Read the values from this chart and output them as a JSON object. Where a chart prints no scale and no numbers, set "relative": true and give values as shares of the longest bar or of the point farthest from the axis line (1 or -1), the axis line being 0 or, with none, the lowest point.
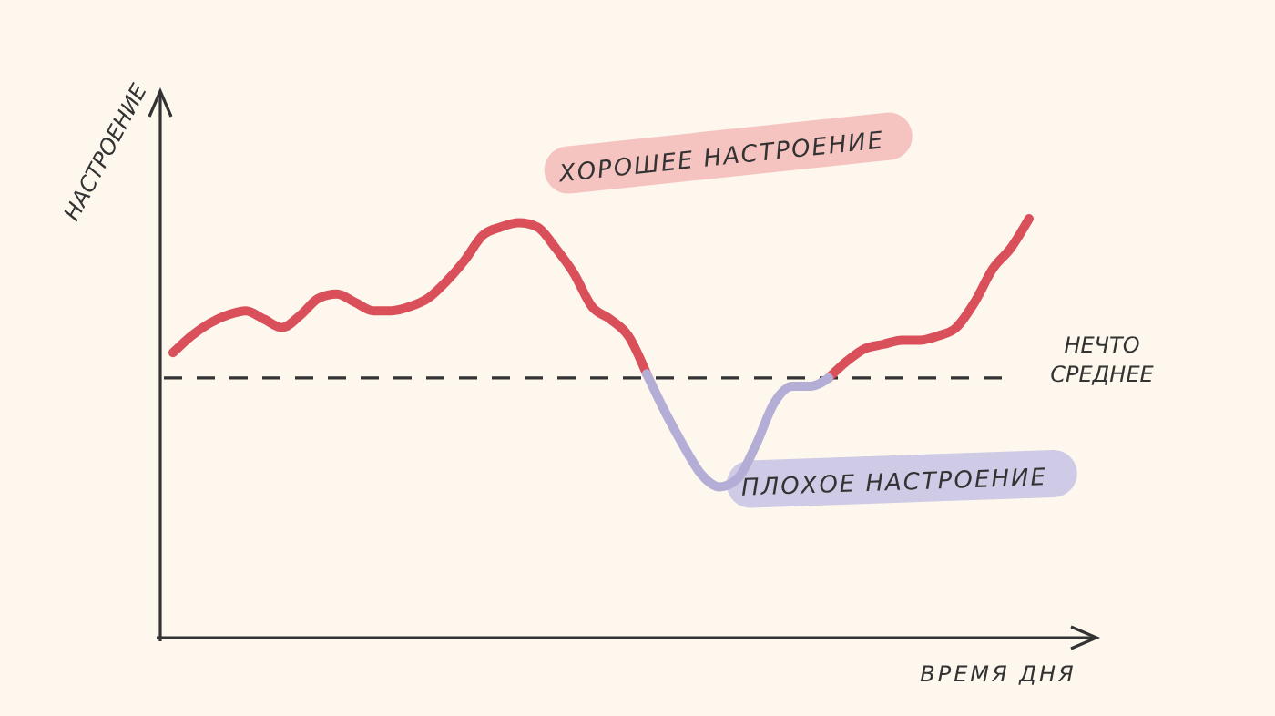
{
  "chart_data": {
    "type": "line",
    "relative": true,
    "xlabel": "ВРЕМЯ ДНЯ",
    "ylabel": "НАСТРОЕНИЕ",
    "categories": [
      null,
      null,
      null,
      null,
      null,
      null,
      null,
      null,
      null,
      null,
      null,
      null,
      null,
      null,
      null,
      null,
      null,
      null,
      null,
      null,
      null,
      null,
      null,
      null,
      null,
      null,
      null,
      null,
      null,
      null,
      null,
      null,
      null,
      null,
      null,
      null,
      null,
      null,
      null,
      null,
      null,
      null,
      null,
      null,
      null,
      null,
      null,
      null
    ],
    "series": [
      {
        "color": "#d9505a",
        "values": [
          0.68,
          0.72,
          0.75,
          0.77,
          0.78,
          0.76,
          0.74,
          0.77,
          0.81,
          0.82,
          0.8,
          0.78,
          0.78,
          0.79,
          0.81,
          0.85,
          0.9,
          0.96,
          0.98,
          0.99,
          0.98,
          0.93,
          0.87,
          0.79,
          0.76,
          0.72,
          0.63,
          null,
          null,
          null,
          null,
          null,
          null,
          null,
          null,
          null,
          0.62,
          0.66,
          0.69,
          0.7,
          0.71,
          0.71,
          0.72,
          0.74,
          0.8,
          0.88,
          0.93,
          1.0
        ]
      },
      {
        "color": "#b4aed6",
        "values": [
          null,
          null,
          null,
          null,
          null,
          null,
          null,
          null,
          null,
          null,
          null,
          null,
          null,
          null,
          null,
          null,
          null,
          null,
          null,
          null,
          null,
          null,
          null,
          null,
          null,
          null,
          0.63,
          0.54,
          0.46,
          0.39,
          0.36,
          0.38,
          0.46,
          0.56,
          0.6,
          0.6,
          0.62,
          null,
          null,
          null,
          null,
          null,
          null,
          null,
          null,
          null,
          null,
          null
        ]
      }
    ],
    "ref_lines": [
      {
        "axis": "y",
        "value": 0.62,
        "label": "НЕЧТО СРЕДНЕЕ",
        "line_style": "dashed"
      }
    ],
    "annotations": [
      "ХОРОШЕЕ НАСТРОЕНИЕ",
      "ПЛОХОЕ НАСТРОЕНИЕ"
    ]
  }
}
